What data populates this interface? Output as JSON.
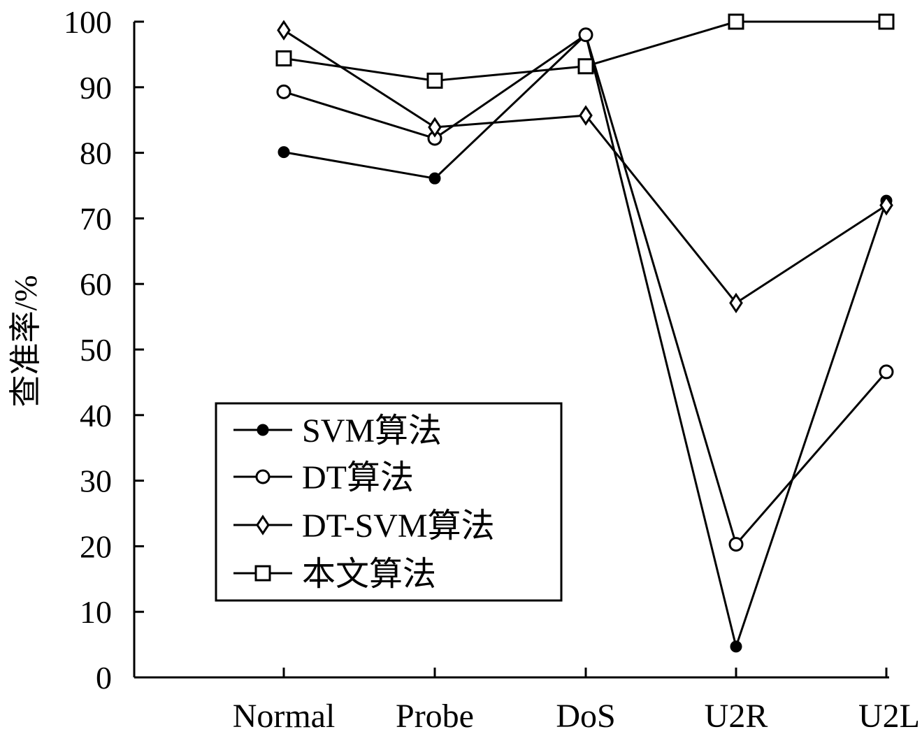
{
  "chart_data": {
    "type": "line",
    "title": "",
    "xlabel": "",
    "ylabel": "查准率/%",
    "categories": [
      "Normal",
      "Probe",
      "DoS",
      "U2R",
      "U2L"
    ],
    "ylim": [
      0,
      100
    ],
    "yticks": [
      "0",
      "10",
      "20",
      "30",
      "40",
      "50",
      "60",
      "70",
      "80",
      "90",
      "100"
    ],
    "grid": false,
    "legend_position": "lower-left",
    "series": [
      {
        "name": "SVM算法",
        "marker": "filled-circle",
        "values": [
          80.1,
          76.1,
          98.0,
          4.7,
          72.7
        ]
      },
      {
        "name": "DT算法",
        "marker": "open-circle",
        "values": [
          89.3,
          82.2,
          98.0,
          20.3,
          46.6
        ]
      },
      {
        "name": "DT-SVM算法",
        "marker": "open-diamond",
        "values": [
          98.7,
          83.9,
          85.7,
          57.1,
          72.0
        ]
      },
      {
        "name": "本文算法",
        "marker": "open-square",
        "values": [
          94.4,
          91.0,
          93.2,
          100.0,
          100.0
        ]
      }
    ],
    "colors": {
      "line": "#000000",
      "background": "#ffffff"
    }
  }
}
